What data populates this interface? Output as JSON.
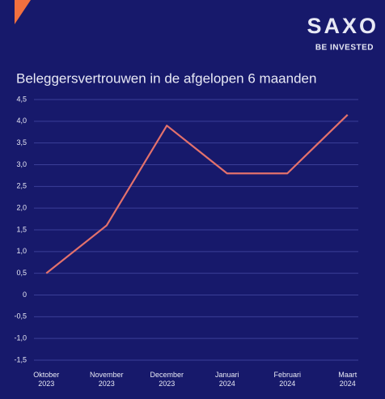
{
  "chart_data": {
    "type": "line",
    "brand": "SAXO",
    "tagline": "BE INVESTED",
    "title": "Beleggersvertrouwen in de afgelopen 6 maanden",
    "categories": [
      "Oktober 2023",
      "November 2023",
      "December 2023",
      "Januari 2024",
      "Februari 2024",
      "Maart 2024"
    ],
    "values": [
      0.5,
      1.6,
      3.9,
      2.8,
      2.8,
      4.15
    ],
    "color": "#e3716c",
    "ylim": [
      -1.5,
      4.5
    ],
    "yticks": [
      {
        "value": 4.5,
        "label": "4,5"
      },
      {
        "value": 4,
        "label": "4,0"
      },
      {
        "value": 3.5,
        "label": "3,5"
      },
      {
        "value": 3,
        "label": "3,0"
      },
      {
        "value": 2.5,
        "label": "2,5"
      },
      {
        "value": 2,
        "label": "2,0"
      },
      {
        "value": 1.5,
        "label": "1,5"
      },
      {
        "value": 1,
        "label": "1,0"
      },
      {
        "value": 0.5,
        "label": "0,5"
      },
      0,
      {
        "value": -0.5,
        "label": "-0,5"
      },
      {
        "value": -1,
        "label": "-1,0"
      },
      {
        "value": -1.5,
        "label": "-1,5"
      }
    ],
    "grid": true
  }
}
